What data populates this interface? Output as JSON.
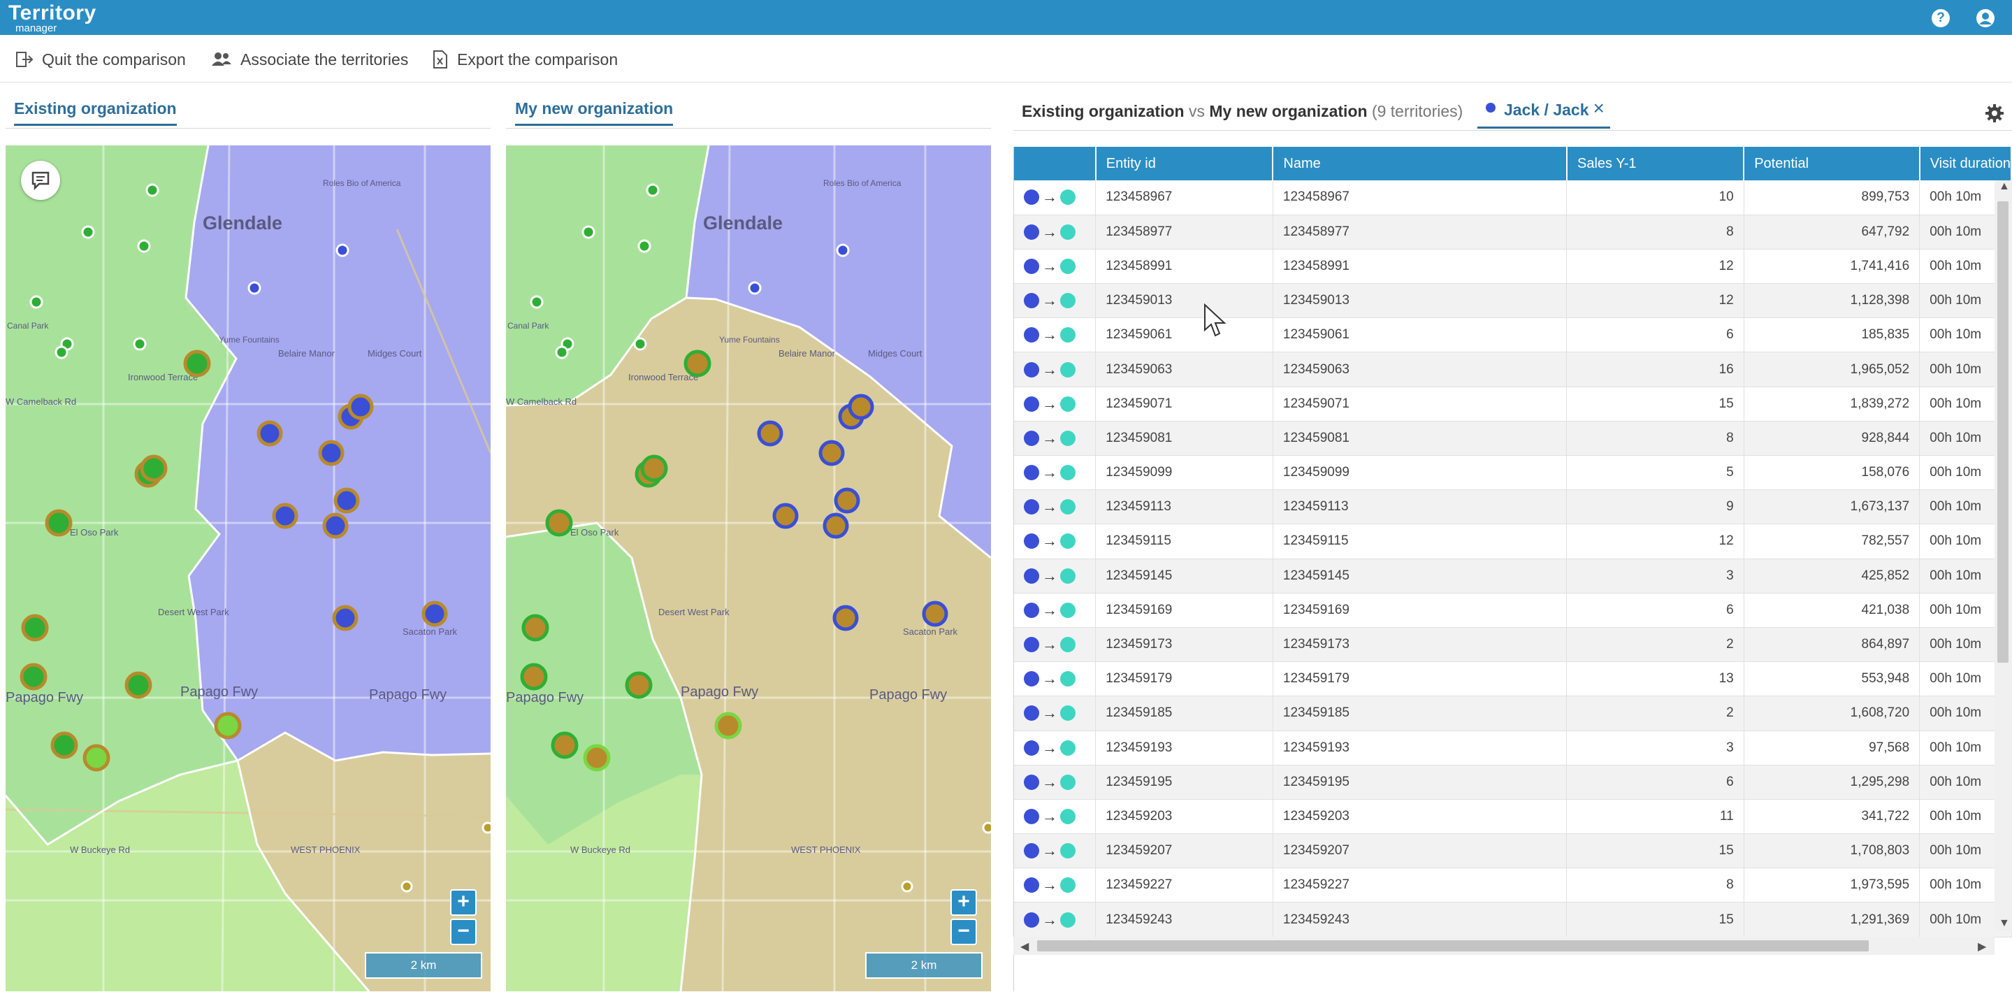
{
  "app": {
    "logo_line1": "Territory",
    "logo_line2": "manager",
    "help_icon": "question-circle-icon",
    "user_icon": "user-circle-icon",
    "brand_color": "#2a8ec4"
  },
  "toolbar": {
    "quit_label": "Quit the comparison",
    "associate_label": "Associate the territories",
    "export_label": "Export the comparison"
  },
  "panels": {
    "left_title": "Existing organization",
    "right_title": "My new organization"
  },
  "maps": {
    "place_glendale": "Glendale",
    "place_rolesbio": "Roles Bio of America",
    "place_canal": "Canal Park",
    "place_ironwood": "Ironwood Terrace",
    "place_camelback": "W Camelback Rd",
    "place_belaire": "Belaire Manor",
    "place_midges": "Midges Court",
    "place_yume": "Yume Fountains",
    "place_desertwest": "Desert West Park",
    "place_papago": "Papago Fwy",
    "place_westphoenix": "WEST PHOENIX",
    "place_buckeye": "W Buckeye Rd",
    "place_oso": "El Oso Park",
    "place_sacaton": "Sacaton Park",
    "scale_label": "2 km",
    "colors": {
      "green_territory": "#a8e29a",
      "blue_territory": "#a6a8f0",
      "tan_territory": "#d8cc9c"
    }
  },
  "comparison": {
    "left_org": "Existing organization",
    "vs": "vs",
    "right_org": "My new organization",
    "count": "(9 territories)",
    "filter_tab": "Jack / Jack"
  },
  "table": {
    "columns": [
      "",
      "Entity id",
      "Name",
      "Sales Y-1",
      "Potential",
      "Visit duration"
    ],
    "visit": "00h 10m",
    "rows": [
      [
        "123458967",
        "123458967",
        "10",
        "899,753"
      ],
      [
        "123458977",
        "123458977",
        "8",
        "647,792"
      ],
      [
        "123458991",
        "123458991",
        "12",
        "1,741,416"
      ],
      [
        "123459013",
        "123459013",
        "12",
        "1,128,398"
      ],
      [
        "123459061",
        "123459061",
        "6",
        "185,835"
      ],
      [
        "123459063",
        "123459063",
        "16",
        "1,965,052"
      ],
      [
        "123459071",
        "123459071",
        "15",
        "1,839,272"
      ],
      [
        "123459081",
        "123459081",
        "8",
        "928,844"
      ],
      [
        "123459099",
        "123459099",
        "5",
        "158,076"
      ],
      [
        "123459113",
        "123459113",
        "9",
        "1,673,137"
      ],
      [
        "123459115",
        "123459115",
        "12",
        "782,557"
      ],
      [
        "123459145",
        "123459145",
        "3",
        "425,852"
      ],
      [
        "123459169",
        "123459169",
        "6",
        "421,038"
      ],
      [
        "123459173",
        "123459173",
        "2",
        "864,897"
      ],
      [
        "123459179",
        "123459179",
        "13",
        "553,948"
      ],
      [
        "123459185",
        "123459185",
        "2",
        "1,608,720"
      ],
      [
        "123459193",
        "123459193",
        "3",
        "97,568"
      ],
      [
        "123459195",
        "123459195",
        "6",
        "1,295,298"
      ],
      [
        "123459203",
        "123459203",
        "11",
        "341,722"
      ],
      [
        "123459207",
        "123459207",
        "15",
        "1,708,803"
      ],
      [
        "123459227",
        "123459227",
        "8",
        "1,973,595"
      ],
      [
        "123459243",
        "123459243",
        "15",
        "1,291,369"
      ]
    ]
  }
}
